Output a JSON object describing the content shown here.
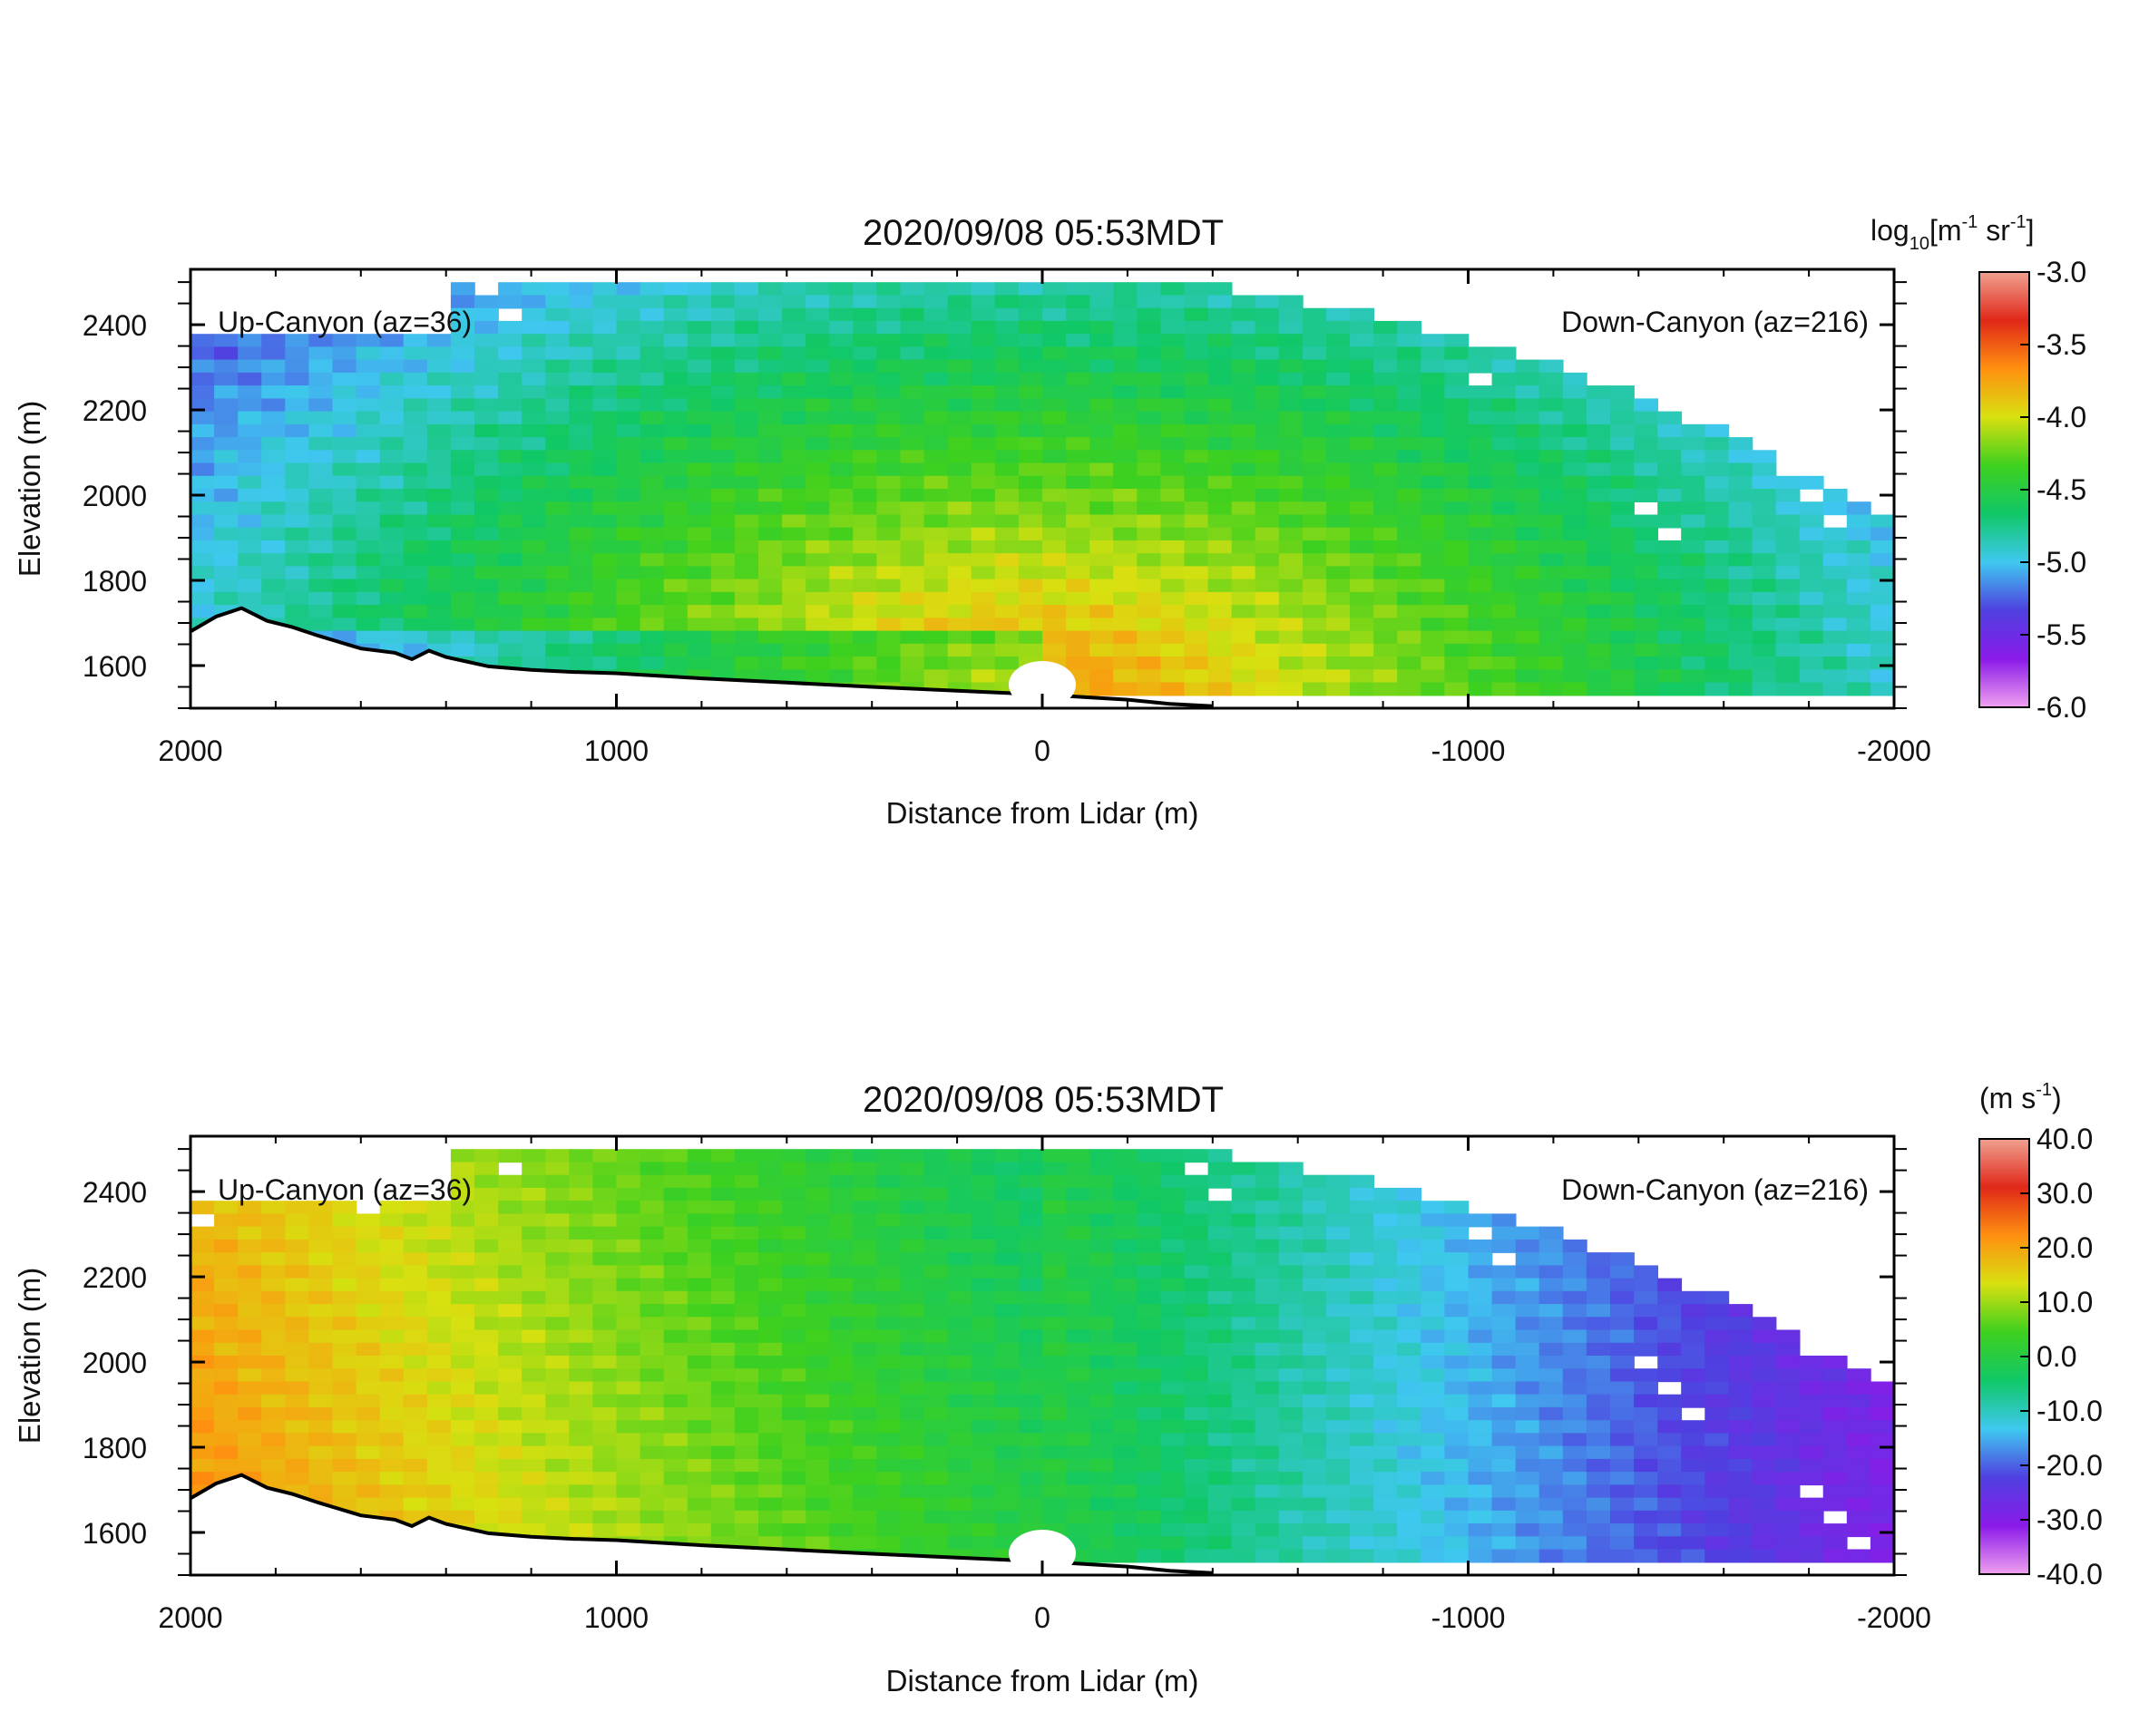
{
  "chart_data": [
    {
      "type": "heatmap",
      "title": "2020/09/08 05:53MDT",
      "xlabel": "Distance from Lidar (m)",
      "ylabel": "Elevation (m)",
      "xlim": [
        2000,
        -2000
      ],
      "ylim": [
        1500,
        2530
      ],
      "xticks": [
        2000,
        1000,
        0,
        -1000,
        -2000
      ],
      "yticks": [
        1600,
        1800,
        2000,
        2200,
        2400
      ],
      "annotations": [
        "Up-Canyon (az=36)",
        "Down-Canyon (az=216)"
      ],
      "grid": false,
      "field": "backscatter",
      "colorbar": {
        "label_main": "log",
        "label_sub": "10",
        "label_rest": "[m",
        "label_exp1": "-1",
        "label_mid": " sr",
        "label_exp2": "-1",
        "label_end": "]",
        "range": [
          -6.0,
          -3.0
        ],
        "ticks": [
          "-3.0",
          "-3.5",
          "-4.0",
          "-4.5",
          "-5.0",
          "-5.5",
          "-6.0"
        ],
        "colors": [
          "#f0a0f0",
          "#8a1be8",
          "#4f3fe0",
          "#3fc8f0",
          "#10c868",
          "#3ed01e",
          "#d8e010",
          "#ff9010",
          "#e02818",
          "#f0a090"
        ]
      },
      "terrain": [
        [
          2000,
          1680
        ],
        [
          1940,
          1715
        ],
        [
          1880,
          1735
        ],
        [
          1820,
          1705
        ],
        [
          1760,
          1690
        ],
        [
          1700,
          1670
        ],
        [
          1600,
          1640
        ],
        [
          1520,
          1630
        ],
        [
          1480,
          1615
        ],
        [
          1440,
          1635
        ],
        [
          1400,
          1620
        ],
        [
          1300,
          1598
        ],
        [
          1200,
          1590
        ],
        [
          1100,
          1585
        ],
        [
          1000,
          1582
        ],
        [
          800,
          1570
        ],
        [
          600,
          1560
        ],
        [
          400,
          1550
        ],
        [
          200,
          1541
        ],
        [
          0,
          1532
        ],
        [
          -200,
          1520
        ],
        [
          -300,
          1510
        ],
        [
          -400,
          1505
        ]
      ]
    },
    {
      "type": "heatmap",
      "title": "2020/09/08 05:53MDT",
      "xlabel": "Distance from Lidar (m)",
      "ylabel": "Elevation (m)",
      "xlim": [
        2000,
        -2000
      ],
      "ylim": [
        1500,
        2530
      ],
      "xticks": [
        2000,
        1000,
        0,
        -1000,
        -2000
      ],
      "yticks": [
        1600,
        1800,
        2000,
        2200,
        2400
      ],
      "annotations": [
        "Up-Canyon (az=36)",
        "Down-Canyon (az=216)"
      ],
      "grid": false,
      "field": "radial velocity",
      "colorbar": {
        "label_main": "(m s",
        "label_exp1": "-1",
        "label_end": ")",
        "range": [
          -40.0,
          40.0
        ],
        "ticks": [
          "40.0",
          "30.0",
          "20.0",
          "10.0",
          "0.0",
          "-10.0",
          "-20.0",
          "-30.0",
          "-40.0"
        ],
        "colors": [
          "#f0a0f0",
          "#8a1be8",
          "#4f3fe0",
          "#3fc8f0",
          "#10c868",
          "#3ed01e",
          "#d8e010",
          "#ff9010",
          "#e02818",
          "#f0a090"
        ]
      },
      "terrain": [
        [
          2000,
          1680
        ],
        [
          1940,
          1715
        ],
        [
          1880,
          1735
        ],
        [
          1820,
          1705
        ],
        [
          1760,
          1690
        ],
        [
          1700,
          1670
        ],
        [
          1600,
          1640
        ],
        [
          1520,
          1630
        ],
        [
          1480,
          1615
        ],
        [
          1440,
          1635
        ],
        [
          1400,
          1620
        ],
        [
          1300,
          1598
        ],
        [
          1200,
          1590
        ],
        [
          1100,
          1585
        ],
        [
          1000,
          1582
        ],
        [
          800,
          1570
        ],
        [
          600,
          1560
        ],
        [
          400,
          1550
        ],
        [
          200,
          1541
        ],
        [
          0,
          1532
        ],
        [
          -200,
          1520
        ],
        [
          -300,
          1510
        ],
        [
          -400,
          1505
        ]
      ]
    }
  ]
}
